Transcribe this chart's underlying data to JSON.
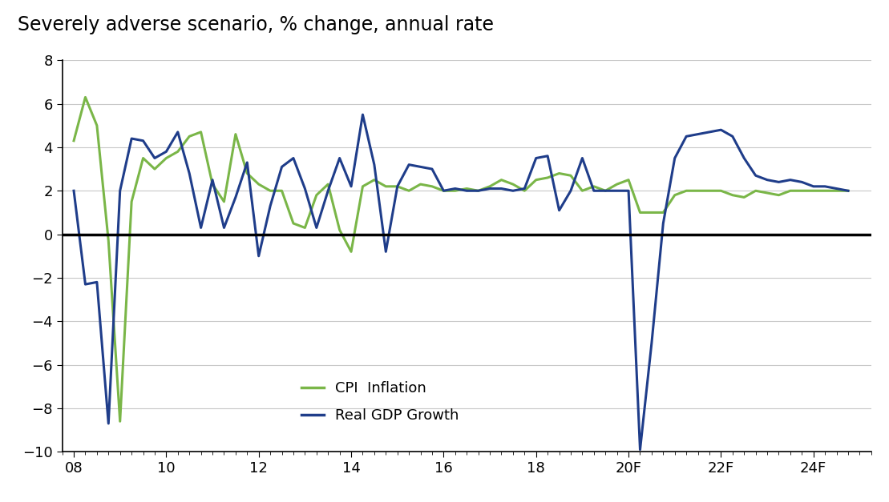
{
  "title": "Severely adverse scenario, % change, annual rate",
  "title_fontsize": 17,
  "cpi_color": "#7ab648",
  "gdp_color": "#1f3d8a",
  "zero_line_color": "#000000",
  "grid_color": "#c8c8c8",
  "background_color": "#ffffff",
  "ylim": [
    -10,
    8
  ],
  "yticks": [
    -10,
    -8,
    -6,
    -4,
    -2,
    0,
    2,
    4,
    6,
    8
  ],
  "xlim_left": 2007.75,
  "xlim_right": 2025.25,
  "xtick_positions": [
    2008,
    2010,
    2012,
    2014,
    2016,
    2018,
    2020,
    2022,
    2024
  ],
  "xtick_labels": [
    "08",
    "10",
    "12",
    "14",
    "16",
    "18",
    "20F",
    "22F",
    "24F"
  ],
  "legend_labels": [
    "CPI  Inflation",
    "Real GDP Growth"
  ],
  "cpi": [
    4.3,
    6.3,
    5.0,
    -0.3,
    -8.6,
    1.5,
    3.5,
    3.0,
    3.5,
    3.8,
    4.5,
    4.7,
    2.3,
    1.5,
    4.6,
    2.8,
    2.3,
    2.0,
    2.0,
    0.5,
    0.3,
    1.8,
    2.3,
    0.2,
    -0.8,
    2.2,
    2.5,
    2.2,
    2.2,
    2.0,
    2.3,
    2.2,
    2.0,
    2.0,
    2.1,
    2.0,
    2.2,
    2.5,
    2.3,
    2.0,
    2.5,
    2.6,
    2.8,
    2.7,
    2.0,
    2.2,
    2.0,
    2.3,
    2.5,
    1.0,
    1.0,
    1.0,
    1.8,
    2.0,
    2.0,
    2.0,
    2.0,
    1.8,
    1.7,
    2.0,
    1.9,
    1.8,
    2.0,
    2.0,
    2.0,
    2.0,
    2.0,
    2.0
  ],
  "gdp": [
    2.0,
    -2.3,
    -2.2,
    -8.7,
    2.0,
    4.4,
    4.3,
    3.5,
    3.8,
    4.7,
    2.8,
    0.3,
    2.5,
    0.3,
    1.7,
    3.3,
    -1.0,
    1.3,
    3.1,
    3.5,
    2.1,
    0.3,
    2.0,
    3.5,
    2.2,
    5.5,
    3.2,
    -0.8,
    2.2,
    3.2,
    3.1,
    3.0,
    2.0,
    2.1,
    2.0,
    2.0,
    2.1,
    2.1,
    2.0,
    2.1,
    3.5,
    3.6,
    1.1,
    2.0,
    3.5,
    2.0,
    2.0,
    2.0,
    2.0,
    -9.9,
    -5.0,
    0.5,
    3.5,
    4.5,
    4.6,
    4.7,
    4.8,
    4.5,
    3.5,
    2.7,
    2.5,
    2.4,
    2.5,
    2.4,
    2.2,
    2.2,
    2.1,
    2.0
  ]
}
